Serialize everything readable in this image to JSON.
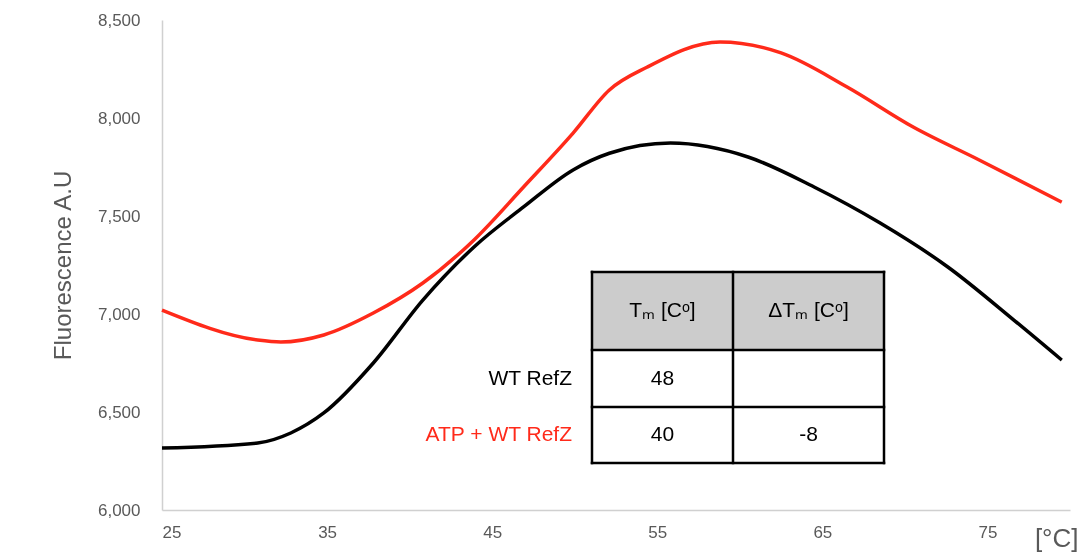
{
  "chart_data": {
    "type": "line",
    "ylabel": "Fluorescence A.U",
    "xlabel": "[°C]",
    "xlim": [
      25,
      80
    ],
    "xticks": [
      25,
      35,
      45,
      55,
      65,
      75
    ],
    "ylim": [
      6000,
      8500
    ],
    "yticks": [
      {
        "value": 6000,
        "label": "6,000"
      },
      {
        "value": 6500,
        "label": "6,500"
      },
      {
        "value": 7000,
        "label": "7,000"
      },
      {
        "value": 7500,
        "label": "7,500"
      },
      {
        "value": 8000,
        "label": "8,000"
      },
      {
        "value": 8500,
        "label": "8,500"
      }
    ],
    "grid": false,
    "marker": "none",
    "line_style": "solid",
    "series": [
      {
        "name": "WT RefZ",
        "color": "#000000",
        "x": [
          25,
          30.8,
          32.8,
          34.8,
          37.8,
          40.8,
          43.9,
          46.9,
          49.9,
          52.1,
          55.8,
          60.5,
          64.5,
          68.5,
          72.6,
          76.6,
          79.5
        ],
        "values": [
          6316,
          6342,
          6393,
          6495,
          6750,
          7071,
          7342,
          7546,
          7735,
          7820,
          7872,
          7801,
          7648,
          7464,
          7240,
          6969,
          6765
        ]
      },
      {
        "name": "ATP + WT RefZ",
        "color": "#ff2a1a",
        "x": [
          25,
          30.8,
          32.2,
          34.8,
          37.8,
          40.8,
          43.9,
          46.9,
          49.9,
          52.1,
          54.4,
          58.8,
          62.5,
          66.5,
          70.5,
          74.5,
          79.5
        ],
        "values": [
          7020,
          6867,
          6857,
          6893,
          7005,
          7158,
          7378,
          7648,
          7923,
          8143,
          8260,
          8388,
          8332,
          8158,
          7954,
          7786,
          7571
        ]
      }
    ],
    "annotations": [
      "Tₘ [Cᵒ]",
      "ΔTₘ [Cᵒ]",
      "48",
      "40",
      "-8"
    ]
  }
}
